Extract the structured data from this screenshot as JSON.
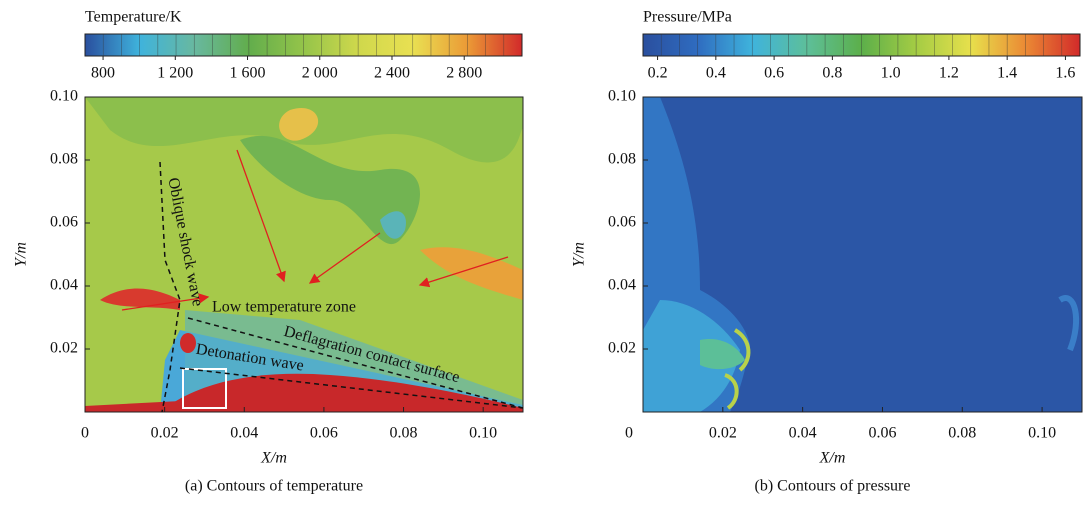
{
  "chart_data": [
    {
      "type": "contour",
      "colorbar_title": "Temperature/K",
      "clim": [
        700,
        3120
      ],
      "colorbar_ticks": [
        800,
        {
          "value": 1200,
          "label": "1 200"
        },
        {
          "value": 1600,
          "label": "1 600"
        },
        {
          "value": 2000,
          "label": "2 000"
        },
        {
          "value": 2400,
          "label": "2 400"
        },
        {
          "value": 2800,
          "label": "2 800"
        }
      ],
      "colormap": [
        "#2a4f9e",
        "#3fb3dc",
        "#68b8a0",
        "#62ad4c",
        "#94c44a",
        "#cfd84c",
        "#e9e052",
        "#eb9a36",
        "#d22a2a"
      ],
      "xlabel": "X/m",
      "ylabel": "Y/m",
      "xlim": [
        0,
        0.11
      ],
      "ylim": [
        0,
        0.1
      ],
      "xticks": [
        0,
        0.02,
        0.04,
        0.06,
        0.08,
        {
          "value": 0.1,
          "label": "0.10"
        }
      ],
      "yticks": [
        0.02,
        0.04,
        0.06,
        0.08,
        {
          "value": 0.1,
          "label": "0.10"
        }
      ],
      "annotations": [
        "Oblique shock wave",
        "Low temperature zone",
        "Deflagration contact surface",
        "Detonation wave"
      ],
      "caption": "(a) Contours of temperature"
    },
    {
      "type": "contour",
      "colorbar_title": "Pressure/MPa",
      "clim": [
        0.15,
        1.65
      ],
      "colorbar_ticks": [
        0.2,
        0.4,
        0.6,
        0.8,
        {
          "value": 1,
          "label": "1.0"
        },
        1.2,
        1.4,
        1.6
      ],
      "colormap": [
        "#2a4f9e",
        "#2f6cc0",
        "#3fb3dc",
        "#5dbf9a",
        "#5caf4a",
        "#a4cc44",
        "#e7e04c",
        "#eb8a34",
        "#d22a2a"
      ],
      "xlabel": "X/m",
      "ylabel": "Y/m",
      "xlim": [
        0,
        0.11
      ],
      "ylim": [
        0,
        0.1
      ],
      "xticks": [
        0.02,
        0.04,
        0.06,
        0.08,
        {
          "value": 0.1,
          "label": "0.10"
        }
      ],
      "yticks": [
        0.02,
        0.04,
        0.06,
        0.08,
        {
          "value": 0.1,
          "label": "0.10"
        }
      ],
      "xorigin_label": 0,
      "caption": "(b) Contours of pressure"
    }
  ]
}
